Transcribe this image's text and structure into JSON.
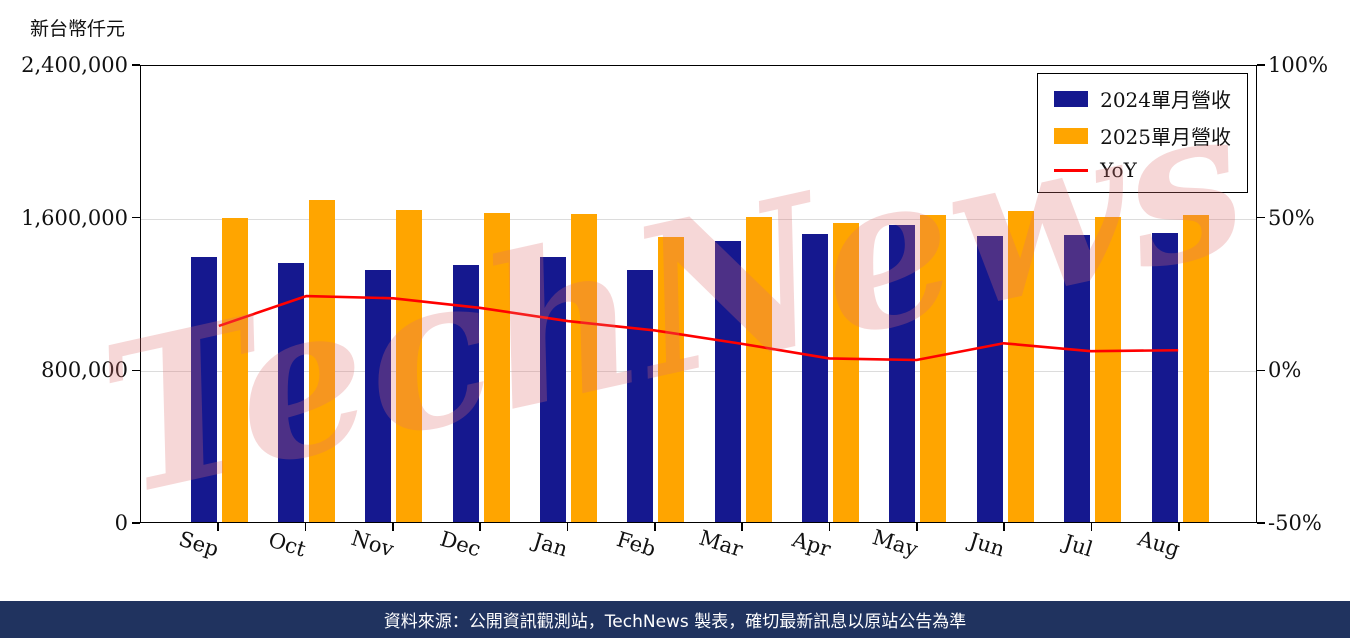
{
  "chart_data": {
    "type": "bar",
    "title": "",
    "unit_label": "新台幣仟元",
    "watermark": "TechNews",
    "footer": "資料來源：公開資訊觀測站，TechNews 製表，確切最新訊息以原站公告為準",
    "categories": [
      "Sep",
      "Oct",
      "Nov",
      "Dec",
      "Jan",
      "Feb",
      "Mar",
      "Apr",
      "May",
      "Jun",
      "Jul",
      "Aug"
    ],
    "series": [
      {
        "name": "2024單月營收",
        "chart_type": "bar",
        "color": "#15188f",
        "values": [
          1390000,
          1356000,
          1321000,
          1346000,
          1389000,
          1320000,
          1470000,
          1508000,
          1556000,
          1497000,
          1503000,
          1513000
        ]
      },
      {
        "name": "2025單月營收",
        "chart_type": "bar",
        "color": "#ffa500",
        "values": [
          1591000,
          1686000,
          1633000,
          1621000,
          1613000,
          1492000,
          1596000,
          1566000,
          1607000,
          1629000,
          1596000,
          1611000
        ]
      },
      {
        "name": "YoY",
        "chart_type": "line",
        "color": "#ff0000",
        "unit": "%",
        "values": [
          14.5,
          24.3,
          23.6,
          20.4,
          16.1,
          13.0,
          8.6,
          3.8,
          3.3,
          8.8,
          6.2,
          6.5
        ]
      }
    ],
    "left_axis": {
      "tick_labels": [
        "2,400,000",
        "1,600,000",
        "800,000",
        "0"
      ],
      "tick_values": [
        2400000,
        1600000,
        800000,
        0
      ],
      "min": 0,
      "max": 2400000
    },
    "right_axis": {
      "tick_labels": [
        "100%",
        "50%",
        "0%",
        "-50%"
      ],
      "tick_values": [
        100,
        50,
        0,
        -50
      ],
      "min": -50,
      "max": 100
    },
    "legend_position": "top-right",
    "grid": "horizontal",
    "colors": {
      "footer_bg": "#20335f",
      "watermark": "#de6e6e",
      "grid": "#dcdcdc"
    }
  }
}
